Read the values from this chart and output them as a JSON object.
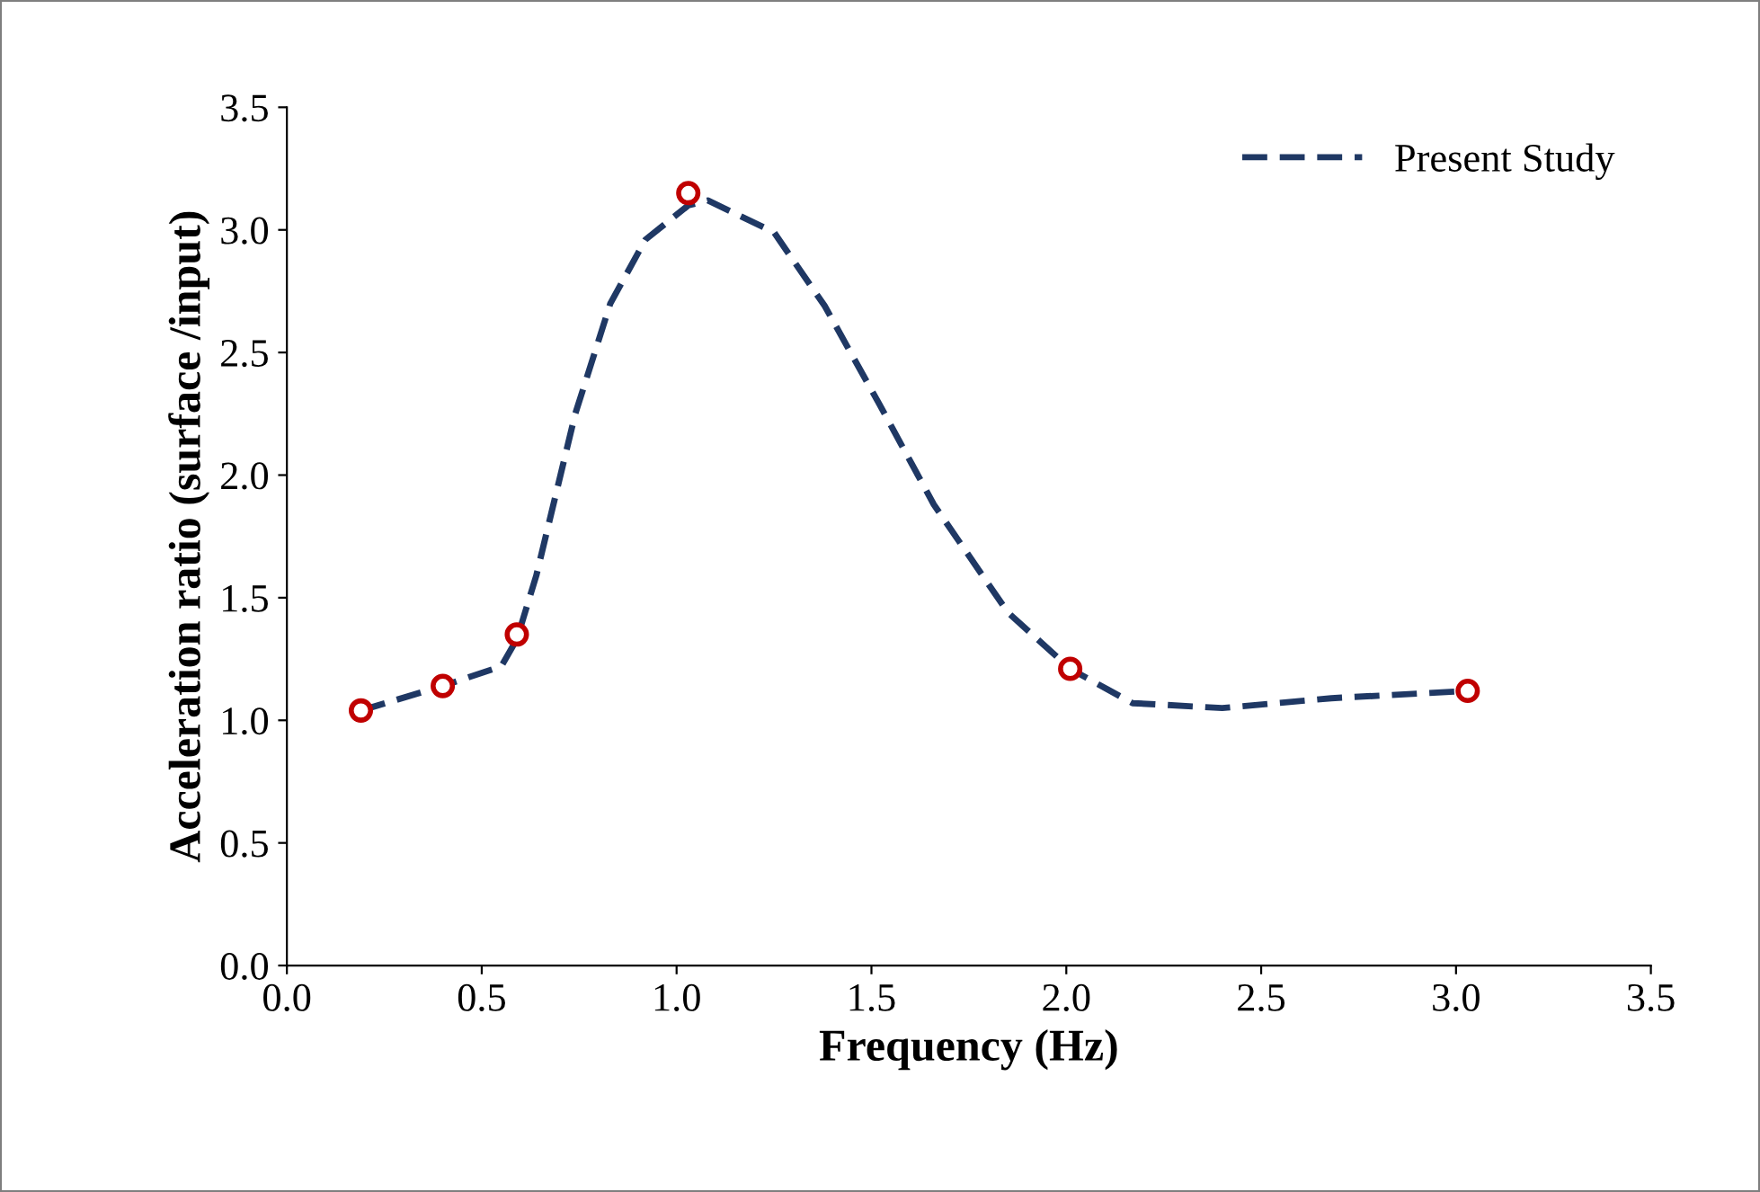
{
  "chart_data": {
    "type": "line",
    "xlabel": "Frequency (Hz)",
    "ylabel": "Acceleration ratio (surface /input)",
    "xlim": [
      0,
      3.5
    ],
    "xticks": [
      {
        "value": 0,
        "label": "0.0"
      },
      {
        "value": 0.5,
        "label": "0.5"
      },
      {
        "value": 1,
        "label": "1.0"
      },
      {
        "value": 1.5,
        "label": "1.5"
      },
      {
        "value": 2,
        "label": "2.0"
      },
      {
        "value": 2.5,
        "label": "2.5"
      },
      {
        "value": 3,
        "label": "3.0"
      },
      {
        "value": 3.5,
        "label": "3.5"
      }
    ],
    "ylim": [
      0,
      3.5
    ],
    "yticks": [
      {
        "value": 0,
        "label": "0.0"
      },
      {
        "value": 0.5,
        "label": "0.5"
      },
      {
        "value": 1,
        "label": "1.0"
      },
      {
        "value": 1.5,
        "label": "1.5"
      },
      {
        "value": 2,
        "label": "2.0"
      },
      {
        "value": 2.5,
        "label": "2.5"
      },
      {
        "value": 3,
        "label": "3.0"
      },
      {
        "value": 3.5,
        "label": "3.5"
      }
    ],
    "grid": false,
    "legend": "top right",
    "series": [
      {
        "name": "Present Study",
        "color": "#1f3864",
        "line_style": "dashed",
        "marker": "none",
        "x": [
          0.19,
          0.4,
          0.55,
          0.59,
          0.64,
          0.74,
          0.83,
          0.92,
          1.03,
          1.08,
          1.25,
          1.38,
          1.52,
          1.66,
          1.85,
          2.01,
          2.17,
          2.4,
          2.68,
          3.03
        ],
        "values": [
          1.04,
          1.14,
          1.22,
          1.33,
          1.59,
          2.25,
          2.7,
          2.96,
          3.1,
          3.12,
          2.99,
          2.69,
          2.29,
          1.88,
          1.44,
          1.21,
          1.07,
          1.05,
          1.09,
          1.12
        ]
      },
      {
        "type": "scatter",
        "color": "#c00000",
        "marker": "circle",
        "x": [
          0.19,
          0.4,
          0.59,
          1.03,
          2.01,
          3.03
        ],
        "values": [
          1.04,
          1.14,
          1.35,
          3.15,
          1.21,
          1.12
        ]
      }
    ]
  }
}
